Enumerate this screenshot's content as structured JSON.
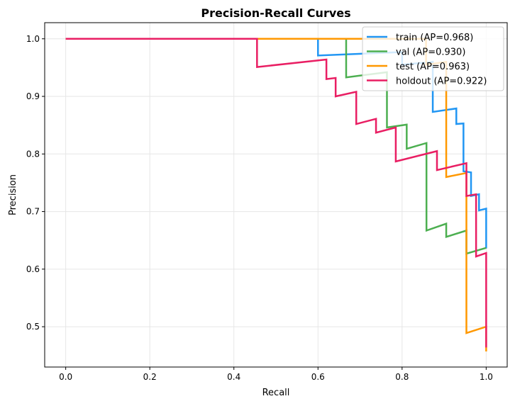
{
  "chart_data": {
    "type": "line",
    "title": "Precision-Recall Curves",
    "xlabel": "Recall",
    "ylabel": "Precision",
    "xlim": [
      -0.05,
      1.05
    ],
    "ylim": [
      0.43,
      1.028
    ],
    "xticks": [
      "0.0",
      "0.2",
      "0.4",
      "0.6",
      "0.8",
      "1.0"
    ],
    "yticks": [
      "0.5",
      "0.6",
      "0.7",
      "0.8",
      "0.9",
      "1.0"
    ],
    "grid": true,
    "legend_position": "top-right",
    "series": [
      {
        "name": "train (AP=0.968)",
        "color": "#2196F3",
        "points": [
          [
            0,
            1
          ],
          [
            0.6,
            1
          ],
          [
            0.6,
            0.971
          ],
          [
            0.8,
            0.977
          ],
          [
            0.8,
            0.955
          ],
          [
            0.873,
            0.96
          ],
          [
            0.873,
            0.873
          ],
          [
            0.929,
            0.879
          ],
          [
            0.929,
            0.852
          ],
          [
            0.946,
            0.853
          ],
          [
            0.946,
            0.77
          ],
          [
            0.964,
            0.768
          ],
          [
            0.964,
            0.727
          ],
          [
            0.983,
            0.73
          ],
          [
            0.983,
            0.702
          ],
          [
            1.0,
            0.705
          ],
          [
            1.0,
            0.636
          ]
        ]
      },
      {
        "name": "val (AP=0.930)",
        "color": "#4CAF50",
        "points": [
          [
            0,
            1
          ],
          [
            0.667,
            1
          ],
          [
            0.667,
            0.933
          ],
          [
            0.764,
            0.942
          ],
          [
            0.764,
            0.846
          ],
          [
            0.811,
            0.851
          ],
          [
            0.811,
            0.809
          ],
          [
            0.858,
            0.819
          ],
          [
            0.858,
            0.667
          ],
          [
            0.905,
            0.679
          ],
          [
            0.905,
            0.656
          ],
          [
            0.953,
            0.667
          ],
          [
            0.953,
            0.627
          ],
          [
            1.0,
            0.637
          ]
        ]
      },
      {
        "name": "test (AP=0.963)",
        "color": "#FF9800",
        "points": [
          [
            0,
            1
          ],
          [
            0.857,
            1
          ],
          [
            0.857,
            0.955
          ],
          [
            0.905,
            0.96
          ],
          [
            0.905,
            0.76
          ],
          [
            0.953,
            0.767
          ],
          [
            0.953,
            0.489
          ],
          [
            1.0,
            0.5
          ],
          [
            1.0,
            0.457
          ]
        ]
      },
      {
        "name": "holdout (AP=0.922)",
        "color": "#E91E63",
        "points": [
          [
            0,
            1
          ],
          [
            0.455,
            1
          ],
          [
            0.455,
            0.951
          ],
          [
            0.62,
            0.964
          ],
          [
            0.62,
            0.93
          ],
          [
            0.642,
            0.932
          ],
          [
            0.642,
            0.9
          ],
          [
            0.691,
            0.908
          ],
          [
            0.691,
            0.852
          ],
          [
            0.738,
            0.861
          ],
          [
            0.738,
            0.837
          ],
          [
            0.785,
            0.846
          ],
          [
            0.785,
            0.787
          ],
          [
            0.883,
            0.805
          ],
          [
            0.883,
            0.772
          ],
          [
            0.953,
            0.784
          ],
          [
            0.953,
            0.727
          ],
          [
            0.976,
            0.73
          ],
          [
            0.976,
            0.622
          ],
          [
            1.0,
            0.628
          ],
          [
            1.0,
            0.464
          ]
        ]
      }
    ]
  }
}
